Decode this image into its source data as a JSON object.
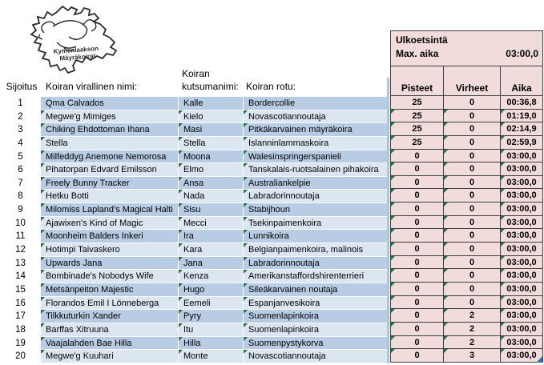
{
  "colors": {
    "row_band_dark": "#b8cce4",
    "row_band_light": "#dce6f1",
    "value_cell_bg": "#f2dcdb",
    "marker_green": "#1e7145",
    "grid_border": "#3f3f3f",
    "selection_blue": "#aac4e2"
  },
  "logo": {
    "line1": "Kymenlaakson",
    "line2": "Mäyräkoirat"
  },
  "info_box": {
    "title": "Ulkoetsintä",
    "max_label": "Max. aika",
    "max_value": "03:00,0"
  },
  "headers": {
    "rank": "Sijoitus",
    "official_name": "Koiran virallinen nimi:",
    "call_name_line1": "Koiran",
    "call_name_line2": "kutsumanimi:",
    "breed": "Koiran rotu:",
    "points": "Pisteet",
    "faults": "Virheet",
    "time": "Aika"
  },
  "table": {
    "rows": [
      {
        "rank": "1",
        "name": "Qma Calvados",
        "call": "Kalle",
        "breed": "Bordercollie",
        "points": "25",
        "faults": "0",
        "time": "00:36,8",
        "marker": false
      },
      {
        "rank": "2",
        "name": "Megwe'g Mimiges",
        "call": "Kielo",
        "breed": "Novascotiannoutaja",
        "points": "25",
        "faults": "0",
        "time": "01:19,0",
        "marker": true
      },
      {
        "rank": "3",
        "name": "Chiking Ehdottoman Ihana",
        "call": "Masi",
        "breed": "Pitkäkarvainen mäyräkoira",
        "points": "25",
        "faults": "0",
        "time": "02:14,9",
        "marker": true
      },
      {
        "rank": "4",
        "name": "Stella",
        "call": "Stella",
        "breed": "Islanninlammaskoira",
        "points": "25",
        "faults": "0",
        "time": "02:59,9",
        "marker": true
      },
      {
        "rank": "5",
        "name": "Milfeddyg Anemone Nemorosa",
        "call": "Moona",
        "breed": "Walesinspringerspanieli",
        "points": "0",
        "faults": "0",
        "time": "03:00,0",
        "marker": true
      },
      {
        "rank": "6",
        "name": "Pihatorpan Edvard Emilsson",
        "call": "Elmo",
        "breed": "Tanskalais-ruotsalainen pihakoira",
        "points": "0",
        "faults": "0",
        "time": "03:00,0",
        "marker": true
      },
      {
        "rank": "7",
        "name": "Freely Bunny Tracker",
        "call": "Ansa",
        "breed": "Australiankelpie",
        "points": "0",
        "faults": "0",
        "time": "03:00,0",
        "marker": true
      },
      {
        "rank": "8",
        "name": "Hetku Botti",
        "call": "Nada",
        "breed": "Labradorinnoutaja",
        "points": "0",
        "faults": "0",
        "time": "03:00,0",
        "marker": true
      },
      {
        "rank": "9",
        "name": "Milomiss Lapland’s Magical Halti",
        "call": "Sisu",
        "breed": "Stabijhoun",
        "points": "0",
        "faults": "0",
        "time": "03:00,0",
        "marker": true
      },
      {
        "rank": "10",
        "name": "Ajawixen's Kind of Magic",
        "call": "Mecci",
        "breed": "Tsekinpaimenkoira",
        "points": "0",
        "faults": "0",
        "time": "03:00,0",
        "marker": true
      },
      {
        "rank": "11",
        "name": "Moonheim Balders Inkeri",
        "call": "Ira",
        "breed": "Lunnikoira",
        "points": "0",
        "faults": "0",
        "time": "03:00,0",
        "marker": true
      },
      {
        "rank": "12",
        "name": "Hotimpi Taivaskero",
        "call": "Kara",
        "breed": "Belgianpaimenkoira, malinois",
        "points": "0",
        "faults": "0",
        "time": "03:00,0",
        "marker": true
      },
      {
        "rank": "13",
        "name": "Upwards Jana",
        "call": "Jana",
        "breed": "Labradorinnoutaja",
        "points": "0",
        "faults": "0",
        "time": "03:00,0",
        "marker": true
      },
      {
        "rank": "14",
        "name": "Bombinade's Nobodys Wife",
        "call": "Kenza",
        "breed": "Amerikanstaffordshirenterrieri",
        "points": "0",
        "faults": "0",
        "time": "03:00,0",
        "marker": true
      },
      {
        "rank": "15",
        "name": "Metsänpeiton Majestic",
        "call": "Hugo",
        "breed": "Sileäkarvainen noutaja",
        "points": "0",
        "faults": "0",
        "time": "03:00,0",
        "marker": true
      },
      {
        "rank": "16",
        "name": "Florandos Emil I Lönneberga",
        "call": "Eemeli",
        "breed": "Espanjanvesikoira",
        "points": "0",
        "faults": "0",
        "time": "03:00,0",
        "marker": true
      },
      {
        "rank": "17",
        "name": "Tilkkuturkin Xander",
        "call": "Pyry",
        "breed": "Suomenlapinkoira",
        "points": "0",
        "faults": "2",
        "time": "03:00,0",
        "marker": true
      },
      {
        "rank": "18",
        "name": "Barffas Xitruuna",
        "call": "Itu",
        "breed": "Suomenlapinkoira",
        "points": "0",
        "faults": "2",
        "time": "03:00,0",
        "marker": true
      },
      {
        "rank": "19",
        "name": "Vaajalahden Bae Hilla",
        "call": "Hilla",
        "breed": "Suomenpystykorva",
        "points": "0",
        "faults": "2",
        "time": "03:00,0",
        "marker": true
      },
      {
        "rank": "20",
        "name": "Megwe'g Kuuhari",
        "call": "Monte",
        "breed": "Novascotiannoutaja",
        "points": "0",
        "faults": "3",
        "time": "03:00,0",
        "marker": true
      }
    ]
  }
}
